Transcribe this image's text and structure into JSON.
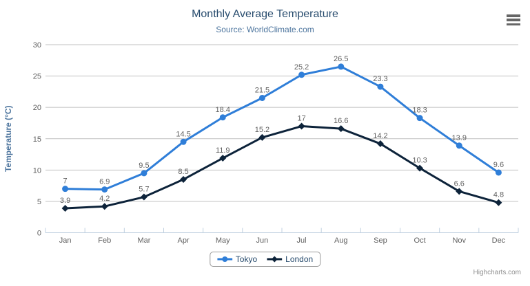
{
  "header": {
    "title": "Monthly Average Temperature",
    "subtitle": "Source: WorldClimate.com"
  },
  "menu": {
    "icon": "hamburger-icon"
  },
  "credits": {
    "label": "Highcharts.com"
  },
  "chart_data": {
    "type": "line",
    "title": "Monthly Average Temperature",
    "subtitle": "Source: WorldClimate.com",
    "categories": [
      "Jan",
      "Feb",
      "Mar",
      "Apr",
      "May",
      "Jun",
      "Jul",
      "Aug",
      "Sep",
      "Oct",
      "Nov",
      "Dec"
    ],
    "series": [
      {
        "name": "Tokyo",
        "color": "#2f7ed8",
        "marker": "circle",
        "values": [
          7,
          6.9,
          9.5,
          14.5,
          18.4,
          21.5,
          25.2,
          26.5,
          23.3,
          18.3,
          13.9,
          9.6
        ]
      },
      {
        "name": "London",
        "color": "#0d233a",
        "marker": "diamond",
        "values": [
          3.9,
          4.2,
          5.7,
          8.5,
          11.9,
          15.2,
          17,
          16.6,
          14.2,
          10.3,
          6.6,
          4.8
        ]
      }
    ],
    "xlabel": "",
    "ylabel": "Temperature (°C)",
    "ylim": [
      0,
      30
    ],
    "yticks": [
      0,
      5,
      10,
      15,
      20,
      25,
      30
    ],
    "grid": true,
    "legend_position": "bottom",
    "data_labels": true
  },
  "colors": {
    "tokyo_series": "#2f7ed8",
    "london_series": "#0d233a",
    "title": "#274b6d",
    "subtitle": "#4d759e",
    "axis_title": "#4d759e",
    "tick_label": "#606060",
    "data_label": "#606060",
    "gridline": "#c0c0c0",
    "axis_line": "#c0d0e0",
    "legend_text": "#274b6d",
    "credits": "#909090",
    "menu_icon": "#666666"
  }
}
